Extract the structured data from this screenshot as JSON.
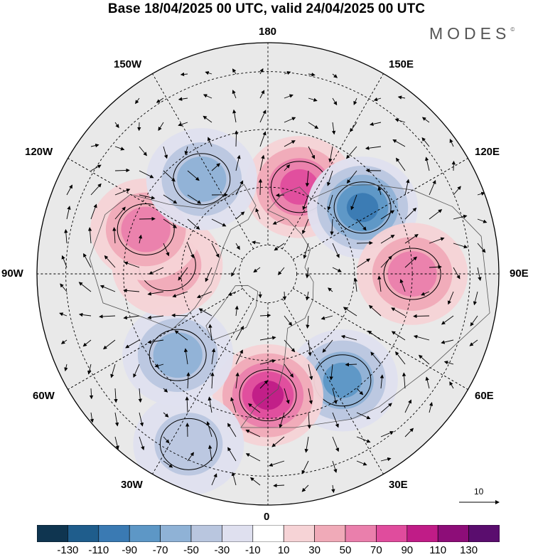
{
  "title": "Base 18/04/2025 00 UTC, valid 24/04/2025 00 UTC",
  "brand": "MODES",
  "brand_mark": "©",
  "longitude_labels": {
    "n180": "180",
    "e150": "150E",
    "e120": "120E",
    "e90": "90E",
    "e60": "60E",
    "e30": "30E",
    "s0": "0",
    "w30": "30W",
    "w60": "60W",
    "w90": "90W",
    "w120": "120W",
    "w150": "150W"
  },
  "reference_vector_label": "10",
  "colorbar": {
    "ticks": [
      "-130",
      "-110",
      "-90",
      "-70",
      "-50",
      "-30",
      "-10",
      "10",
      "30",
      "50",
      "70",
      "90",
      "110",
      "130"
    ],
    "colors": [
      "#0f3550",
      "#1f5d8c",
      "#3a7ab3",
      "#5d97c6",
      "#8fb2d6",
      "#b9c6df",
      "#dfe0ef",
      "#ffffff",
      "#f6d3d6",
      "#f0aab8",
      "#ea7fac",
      "#e04c9d",
      "#c01c87",
      "#8d0d78",
      "#5a0d6e"
    ]
  },
  "anomaly_centers": [
    {
      "name": "positive-anomaly-pacific",
      "lon": 160,
      "lat": 58,
      "value": 75,
      "color": "#ea7fac"
    },
    {
      "name": "negative-anomaly-east-siberia",
      "lon": 125,
      "lat": 50,
      "value": -95,
      "color": "#3a7ab3"
    },
    {
      "name": "positive-anomaly-central-asia",
      "lon": 90,
      "lat": 40,
      "value": 65,
      "color": "#ea7fac"
    },
    {
      "name": "negative-anomaly-europe-east",
      "lon": 35,
      "lat": 45,
      "value": -75,
      "color": "#5d97c6"
    },
    {
      "name": "positive-anomaly-north-atlantic",
      "lon": 0,
      "lat": 48,
      "value": 105,
      "color": "#c01c87"
    },
    {
      "name": "negative-anomaly-labrador",
      "lon": -48,
      "lat": 48,
      "value": -55,
      "color": "#8fb2d6"
    },
    {
      "name": "positive-anomaly-hudson",
      "lon": -95,
      "lat": 55,
      "value": 40,
      "color": "#f0aab8"
    },
    {
      "name": "positive-anomaly-canada-west",
      "lon": -110,
      "lat": 45,
      "value": 60,
      "color": "#f0aab8"
    },
    {
      "name": "negative-anomaly-north-pacific",
      "lon": -145,
      "lat": 50,
      "value": -50,
      "color": "#8fb2d6"
    },
    {
      "name": "negative-anomaly-subtropical-atlantic",
      "lon": -25,
      "lat": 25,
      "value": -45,
      "color": "#8fb2d6"
    }
  ]
}
